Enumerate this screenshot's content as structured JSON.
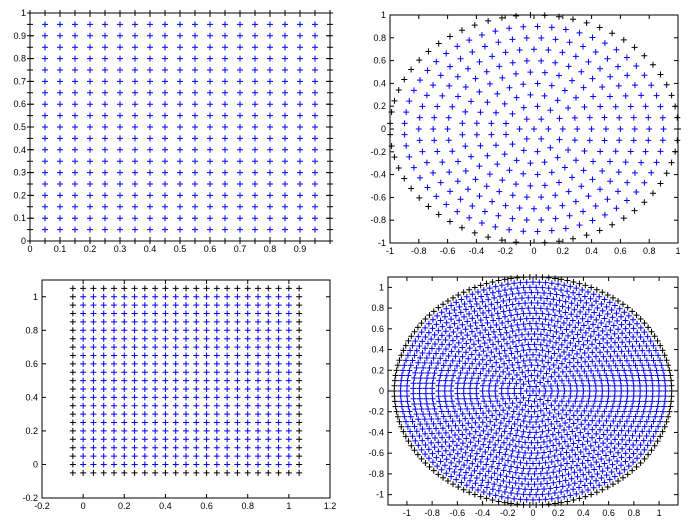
{
  "chart_data": [
    {
      "type": "grid",
      "x": [
        0,
        0.05,
        0.1,
        0.15,
        0.2,
        0.25,
        0.3,
        0.35,
        0.4,
        0.45,
        0.5,
        0.55,
        0.6,
        0.65,
        0.7,
        0.75,
        0.8,
        0.85,
        0.9,
        0.95,
        1
      ],
      "y": [
        0,
        0.05,
        0.1,
        0.15,
        0.2,
        0.25,
        0.3,
        0.35,
        0.4,
        0.45,
        0.5,
        0.55,
        0.6,
        0.65,
        0.7,
        0.75,
        0.8,
        0.85,
        0.9,
        0.95,
        1
      ],
      "interior_color": "#0000ff",
      "boundary_color": "#000000",
      "xlim": [
        0,
        1
      ],
      "ylim": [
        0,
        1
      ],
      "xticks": [
        0,
        0.1,
        0.2,
        0.3,
        0.4,
        0.5,
        0.6,
        0.7,
        0.8,
        0.9
      ],
      "yticks": [
        0,
        0.1,
        0.2,
        0.3,
        0.4,
        0.5,
        0.6,
        0.7,
        0.8,
        0.9,
        1
      ]
    },
    {
      "type": "polar",
      "r": [
        0,
        0.1,
        0.2,
        0.3,
        0.4,
        0.5,
        0.6,
        0.7,
        0.8,
        0.9,
        1
      ],
      "n": [
        1,
        6,
        13,
        19,
        25,
        31,
        38,
        44,
        50,
        57,
        63
      ],
      "interior_color": "#0000ff",
      "boundary_color": "#000000",
      "xlim": [
        -1,
        1
      ],
      "ylim": [
        -1,
        1
      ],
      "xticks": [
        -1,
        -0.8,
        -0.6,
        -0.4,
        -0.2,
        0,
        0.2,
        0.4,
        0.6,
        0.8,
        1
      ],
      "yticks": [
        -1,
        -0.8,
        -0.6,
        -0.4,
        -0.2,
        0,
        0.2,
        0.4,
        0.6,
        0.8,
        1
      ]
    },
    {
      "type": "grid",
      "x": [
        -0.05,
        0,
        0.05,
        0.1,
        0.15,
        0.2,
        0.25,
        0.3,
        0.35,
        0.4,
        0.45,
        0.5,
        0.55,
        0.6,
        0.65,
        0.7,
        0.75,
        0.8,
        0.85,
        0.9,
        0.95,
        1,
        1.05
      ],
      "y": [
        -0.05,
        0,
        0.05,
        0.1,
        0.15,
        0.2,
        0.25,
        0.3,
        0.35,
        0.4,
        0.45,
        0.5,
        0.55,
        0.6,
        0.65,
        0.7,
        0.75,
        0.8,
        0.85,
        0.9,
        0.95,
        1,
        1.05
      ],
      "interior_color": "#0000ff",
      "boundary_color": "#000000",
      "xlim": [
        -0.2,
        1.2
      ],
      "ylim": [
        -0.2,
        1.1
      ],
      "xticks": [
        -0.2,
        0,
        0.2,
        0.4,
        0.6,
        0.8,
        1,
        1.2
      ],
      "yticks": [
        -0.2,
        0,
        0.2,
        0.4,
        0.6,
        0.8,
        1
      ]
    },
    {
      "type": "polar",
      "r": [
        0,
        0.05,
        0.1,
        0.15,
        0.2,
        0.25,
        0.3,
        0.35,
        0.4,
        0.45,
        0.5,
        0.55,
        0.6,
        0.65,
        0.7,
        0.75,
        0.8,
        0.85,
        0.9,
        0.95,
        1,
        1.05,
        1.1
      ],
      "n": [
        1,
        6,
        13,
        19,
        25,
        31,
        38,
        44,
        50,
        57,
        63,
        69,
        75,
        82,
        88,
        94,
        101,
        107,
        113,
        119,
        126,
        132,
        138
      ],
      "interior_color": "#0000ff",
      "boundary_color": "#000000",
      "xlim": [
        -1.15,
        1.15
      ],
      "ylim": [
        -1.1,
        1.1
      ],
      "xticks": [
        -1,
        -0.8,
        -0.6,
        -0.4,
        -0.2,
        0,
        0.2,
        0.4,
        0.6,
        0.8,
        1
      ],
      "yticks": [
        -1,
        -0.8,
        -0.6,
        -0.4,
        -0.2,
        0,
        0.2,
        0.4,
        0.6,
        0.8,
        1
      ]
    }
  ]
}
